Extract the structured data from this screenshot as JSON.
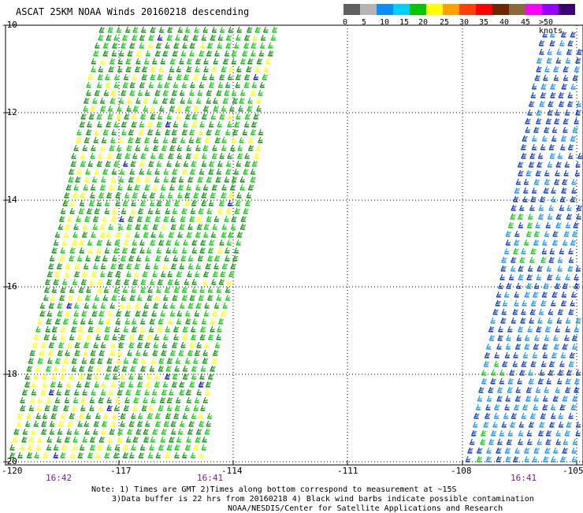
{
  "title": "ASCAT 25KM NOAA Winds 20160218 descending",
  "legend": {
    "colors": [
      "#606060",
      "#b4b4b4",
      "#0a8cff",
      "#00d2ff",
      "#00c800",
      "#ffff00",
      "#ffa000",
      "#ff4000",
      "#ff0000",
      "#6e2800",
      "#8a6a3a",
      "#ff00ff",
      "#9600ff",
      "#3a0070"
    ],
    "labels": [
      "0",
      "5",
      "10",
      "15",
      "20",
      "25",
      "30",
      "35",
      "40",
      "45",
      ">50 knots"
    ]
  },
  "lat_ticks": [
    "-10",
    "-12",
    "-14",
    "-16",
    "-18",
    "-20"
  ],
  "lon_ticks": [
    "-120",
    "-117",
    "-114",
    "-111",
    "-108",
    "-105"
  ],
  "pass_times": [
    "16:42",
    "16:41",
    "16:41"
  ],
  "notes": {
    "line1": "Note: 1) Times are GMT 2)Times along bottom correspond to measurement at ~15S",
    "line2": "3)Data buffer is 22 hrs from 20160218 4) Black wind barbs indicate possible contamination",
    "line3": "NOAA/NESDIS/Center for Satellite Applications and Research"
  },
  "swaths": [
    {
      "name": "west-swath",
      "dominant_colors": [
        "#008c00",
        "#00c800",
        "#ffff00"
      ]
    },
    {
      "name": "east-swath",
      "dominant_colors": [
        "#0030c8",
        "#0a8cff",
        "#00c800"
      ]
    }
  ]
}
